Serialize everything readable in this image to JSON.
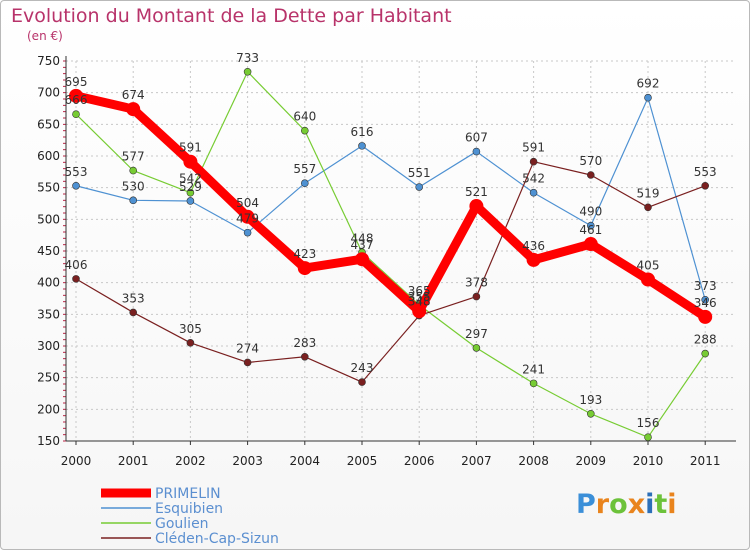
{
  "title": "Evolution du Montant de la Dette par Habitant",
  "subtitle": "(en €)",
  "logo": {
    "letters": [
      "P",
      "r",
      "o",
      "x",
      "i",
      "t",
      "i"
    ],
    "colors": [
      "#3b8fd8",
      "#e9841d",
      "#6cc23a",
      "#e9841d",
      "#2c6fb8",
      "#6cc23a",
      "#e9841d"
    ]
  },
  "chart_data": {
    "type": "line",
    "title": "Evolution du Montant de la Dette par Habitant",
    "ylabel": "(en €)",
    "xlabel": "",
    "ylim": [
      150,
      750
    ],
    "yticks": [
      150,
      200,
      250,
      300,
      350,
      400,
      450,
      500,
      550,
      600,
      650,
      700,
      750
    ],
    "grid": "dashed-horizontal",
    "legend_position": "bottom-left",
    "x": [
      "2000",
      "2001",
      "2002",
      "2003",
      "2004",
      "2005",
      "2006",
      "2007",
      "2008",
      "2009",
      "2010",
      "2011"
    ],
    "series": [
      {
        "name": "PRIMELIN",
        "color": "#ff0000",
        "values": [
          695,
          674,
          591,
          504,
          423,
          437,
          355,
          521,
          436,
          461,
          405,
          346
        ]
      },
      {
        "name": "Esquibien",
        "color": "#4e91d2",
        "values": [
          553,
          530,
          529,
          479,
          557,
          616,
          551,
          607,
          542,
          490,
          692,
          373
        ]
      },
      {
        "name": "Goulien",
        "color": "#77cc33",
        "values": [
          666,
          577,
          542,
          733,
          640,
          448,
          365,
          297,
          241,
          193,
          156,
          288
        ]
      },
      {
        "name": "Cléden-Cap-Sizun",
        "color": "#7a2020",
        "values": [
          406,
          353,
          305,
          274,
          283,
          243,
          348,
          378,
          591,
          570,
          519,
          553
        ]
      }
    ]
  }
}
